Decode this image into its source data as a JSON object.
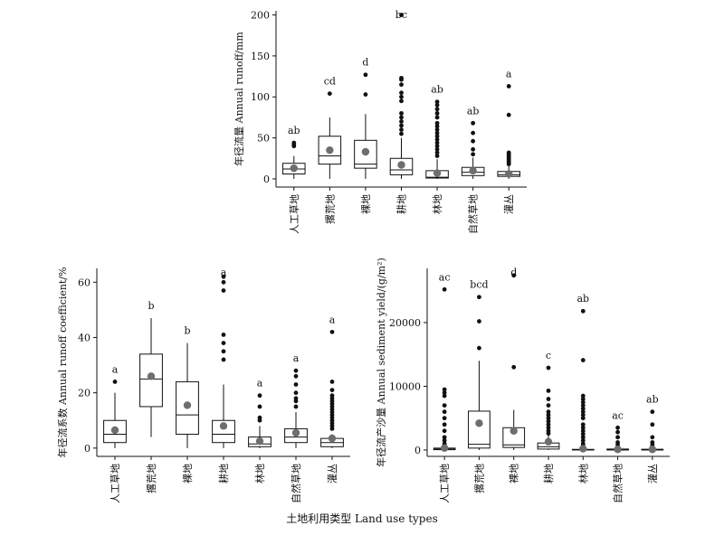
{
  "figure": {
    "x_axis_label": "土地利用类型 Land use types"
  },
  "chart_data": [
    {
      "type": "box",
      "id": "runoff",
      "ylabel": "年径流量  Annual runoff/mm",
      "ylim": [
        -10,
        205
      ],
      "yticks": [
        0,
        50,
        100,
        150,
        200
      ],
      "categories": [
        "人工草地",
        "撂荒地",
        "裸地",
        "耕地",
        "林地",
        "自然草地",
        "灌丛"
      ],
      "boxes": [
        {
          "whisker_low": 0,
          "q1": 6,
          "median": 12,
          "q3": 19,
          "whisker_high": 28,
          "mean": 13,
          "outliers": [
            40,
            42,
            44
          ],
          "letter": "ab"
        },
        {
          "whisker_low": 0,
          "q1": 18,
          "median": 28,
          "q3": 52,
          "whisker_high": 75,
          "mean": 35,
          "outliers": [
            104
          ],
          "letter": "cd"
        },
        {
          "whisker_low": 0,
          "q1": 13,
          "median": 18,
          "q3": 47,
          "whisker_high": 79,
          "mean": 33,
          "outliers": [
            103,
            127
          ],
          "letter": "d"
        },
        {
          "whisker_low": 0,
          "q1": 5,
          "median": 11,
          "q3": 25,
          "whisker_high": 50,
          "mean": 17,
          "outliers": [
            55,
            60,
            65,
            70,
            75,
            80,
            95,
            100,
            105,
            115,
            121,
            123,
            200
          ],
          "letter": "bc"
        },
        {
          "whisker_low": 0,
          "q1": 1,
          "median": 2,
          "q3": 10,
          "whisker_high": 24,
          "mean": 7,
          "outliers": [
            28,
            32,
            36,
            40,
            44,
            48,
            52,
            56,
            60,
            64,
            68,
            75,
            80,
            85,
            90,
            94
          ],
          "letter": "ab"
        },
        {
          "whisker_low": 0,
          "q1": 4,
          "median": 8,
          "q3": 14,
          "whisker_high": 26,
          "mean": 10,
          "outliers": [
            30,
            36,
            46,
            56,
            68
          ],
          "letter": "ab"
        },
        {
          "whisker_low": 0,
          "q1": 3,
          "median": 5,
          "q3": 9,
          "whisker_high": 16,
          "mean": 6,
          "outliers": [
            18,
            20,
            22,
            24,
            26,
            28,
            30,
            32,
            78,
            113
          ],
          "letter": "a"
        }
      ]
    },
    {
      "type": "box",
      "id": "coefficient",
      "ylabel": "年径流系数  Annual runoff coefficient/%",
      "ylim": [
        -3,
        65
      ],
      "yticks": [
        0,
        20,
        40,
        60
      ],
      "categories": [
        "人工草地",
        "撂荒地",
        "裸地",
        "耕地",
        "林地",
        "自然草地",
        "灌丛"
      ],
      "boxes": [
        {
          "whisker_low": 0,
          "q1": 2,
          "median": 5,
          "q3": 10,
          "whisker_high": 20,
          "mean": 6.5,
          "outliers": [
            24
          ],
          "letter": "a"
        },
        {
          "whisker_low": 4,
          "q1": 15,
          "median": 25,
          "q3": 34,
          "whisker_high": 47,
          "mean": 26,
          "outliers": [],
          "letter": "b"
        },
        {
          "whisker_low": 0,
          "q1": 5,
          "median": 12,
          "q3": 24,
          "whisker_high": 38,
          "mean": 15.5,
          "outliers": [],
          "letter": "b"
        },
        {
          "whisker_low": 0,
          "q1": 2,
          "median": 5,
          "q3": 10,
          "whisker_high": 23,
          "mean": 8,
          "outliers": [
            32,
            35,
            38,
            41,
            57,
            60,
            62
          ],
          "letter": "a"
        },
        {
          "whisker_low": 0,
          "q1": 0.5,
          "median": 1.5,
          "q3": 4,
          "whisker_high": 8,
          "mean": 2.5,
          "outliers": [
            10,
            11,
            15,
            19
          ],
          "letter": "a"
        },
        {
          "whisker_low": 0,
          "q1": 2,
          "median": 4,
          "q3": 7,
          "whisker_high": 13,
          "mean": 5.5,
          "outliers": [
            15,
            17,
            18,
            20,
            23,
            26,
            28
          ],
          "letter": "a"
        },
        {
          "whisker_low": 0,
          "q1": 0.5,
          "median": 2,
          "q3": 3.5,
          "whisker_high": 5,
          "mean": 3.5,
          "outliers": [
            7,
            8,
            9,
            10,
            11,
            12,
            13,
            14,
            15,
            16,
            17,
            18,
            19,
            21,
            24,
            42
          ],
          "letter": "a"
        }
      ]
    },
    {
      "type": "box",
      "id": "sediment",
      "ylabel": "年径流产沙量  Annual sediment yield/(g/m²)",
      "ylim": [
        -1000,
        28500
      ],
      "yticks": [
        0,
        10000,
        20000
      ],
      "categories": [
        "人工草地",
        "撂荒地",
        "裸地",
        "耕地",
        "林地",
        "自然草地",
        "灌丛"
      ],
      "boxes": [
        {
          "whisker_low": 0,
          "q1": 50,
          "median": 150,
          "q3": 300,
          "whisker_high": 600,
          "mean": 300,
          "outliers": [
            800,
            1000,
            1500,
            2000,
            3000,
            4000,
            5000,
            6000,
            7000,
            8500,
            9000,
            9500,
            25200
          ],
          "letter": "ac"
        },
        {
          "whisker_low": 0,
          "q1": 300,
          "median": 900,
          "q3": 6100,
          "whisker_high": 14000,
          "mean": 4200,
          "outliers": [
            16000,
            20200,
            24000
          ],
          "letter": "bcd"
        },
        {
          "whisker_low": 0,
          "q1": 400,
          "median": 800,
          "q3": 3500,
          "whisker_high": 6300,
          "mean": 3000,
          "outliers": [
            13000,
            27400
          ],
          "letter": "d"
        },
        {
          "whisker_low": 0,
          "q1": 150,
          "median": 500,
          "q3": 1100,
          "whisker_high": 2300,
          "mean": 1300,
          "outliers": [
            2600,
            3000,
            3500,
            4000,
            4500,
            5000,
            5500,
            6000,
            7000,
            8000,
            9300,
            12900
          ],
          "letter": "c"
        },
        {
          "whisker_low": 0,
          "q1": 0,
          "median": 20,
          "q3": 100,
          "whisker_high": 250,
          "mean": 200,
          "outliers": [
            400,
            700,
            1000,
            1500,
            2000,
            2500,
            3000,
            3500,
            4000,
            5000,
            5500,
            6000,
            6500,
            7000,
            7500,
            8000,
            8500,
            14100,
            21800
          ],
          "letter": "ab"
        },
        {
          "whisker_low": 0,
          "q1": 0,
          "median": 50,
          "q3": 150,
          "whisker_high": 300,
          "mean": 100,
          "outliers": [
            400,
            800,
            1200,
            2000,
            2800,
            3500
          ],
          "letter": "ac"
        },
        {
          "whisker_low": 0,
          "q1": 0,
          "median": 30,
          "q3": 120,
          "whisker_high": 250,
          "mean": 100,
          "outliers": [
            300,
            500,
            800,
            1200,
            2000,
            4000,
            6000
          ],
          "letter": "ab"
        }
      ]
    }
  ],
  "colors": {
    "line": "#111111",
    "mean": "#6e6e6e",
    "outlier": "#111111"
  }
}
